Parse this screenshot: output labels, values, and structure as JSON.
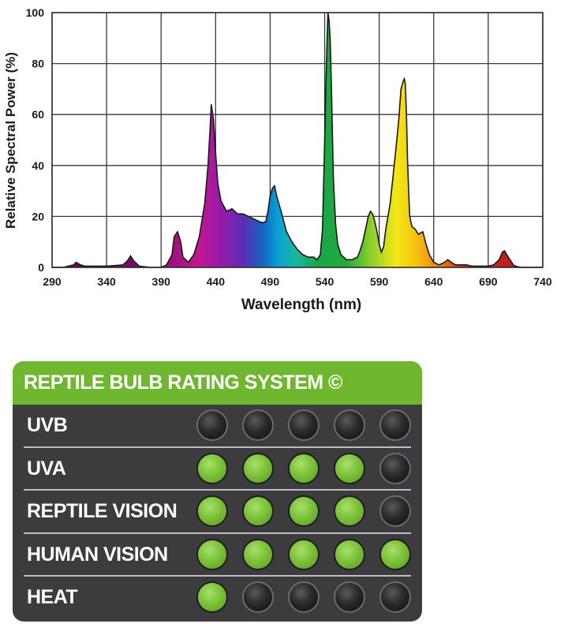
{
  "chart_data": {
    "type": "area",
    "title": "",
    "xlabel": "Wavelength (nm)",
    "ylabel": "Relative Spectral Power (%)",
    "xlim": [
      290,
      740
    ],
    "ylim": [
      0,
      100
    ],
    "x_ticks": [
      290,
      340,
      390,
      440,
      490,
      540,
      590,
      640,
      690,
      740
    ],
    "y_ticks": [
      0,
      20,
      40,
      60,
      80,
      100
    ],
    "grid": true,
    "series": [
      {
        "x": [
          290,
          300,
          310,
          312,
          316,
          320,
          330,
          340,
          350,
          355,
          359,
          362,
          365,
          370,
          380,
          390,
          395,
          400,
          402,
          405,
          408,
          410,
          415,
          420,
          425,
          430,
          433,
          435,
          436,
          438,
          440,
          442,
          445,
          450,
          455,
          460,
          465,
          470,
          475,
          480,
          483,
          486,
          488,
          490,
          492,
          494,
          496,
          500,
          505,
          510,
          515,
          520,
          525,
          530,
          533,
          536,
          538,
          540,
          541,
          542,
          543,
          544,
          545,
          546,
          547,
          548,
          550,
          552,
          555,
          560,
          565,
          570,
          572,
          575,
          578,
          580,
          582,
          584,
          586,
          588,
          590,
          592,
          594,
          596,
          600,
          605,
          608,
          610,
          612,
          613,
          614,
          615,
          616,
          617,
          618,
          620,
          623,
          626,
          630,
          633,
          636,
          640,
          645,
          650,
          653,
          656,
          660,
          665,
          670,
          675,
          680,
          685,
          690,
          695,
          700,
          703,
          705,
          707,
          710,
          713,
          715,
          720,
          730,
          740
        ],
        "y": [
          0,
          0,
          1,
          2,
          1,
          0.5,
          0.5,
          0.5,
          0.8,
          1,
          2.5,
          4.5,
          2.5,
          0.5,
          0,
          0,
          1,
          5,
          12,
          14,
          10,
          4,
          2,
          5,
          12,
          25,
          40,
          55,
          64,
          58,
          45,
          33,
          26,
          22,
          23,
          21,
          21,
          20,
          19,
          18,
          17.5,
          18,
          22,
          28,
          31,
          32,
          28,
          22,
          14,
          10,
          7,
          5,
          4,
          4,
          3,
          5,
          15,
          50,
          70,
          86,
          100,
          97,
          90,
          75,
          55,
          35,
          17,
          9,
          5,
          3,
          3,
          4,
          6,
          10,
          16,
          20,
          22,
          21,
          18,
          14,
          9,
          6,
          8,
          15,
          25,
          45,
          58,
          70,
          73,
          74,
          72,
          60,
          42,
          30,
          20,
          16,
          15,
          13,
          14,
          9,
          5,
          2,
          1,
          2,
          3,
          2,
          1,
          1,
          1,
          0.5,
          0.5,
          0.5,
          0.5,
          1,
          3,
          6,
          6.5,
          5,
          3,
          1,
          0.5,
          0,
          0,
          0
        ]
      }
    ]
  },
  "rating": {
    "title": "REPTILE BULB RATING SYSTEM ©",
    "colors": {
      "header": "#6fb72f",
      "panel": "#3c3c3e",
      "on": "#7cc23a",
      "off": "#1a1a1a"
    },
    "rows": [
      {
        "label": "UVB",
        "on": 0,
        "of": 5
      },
      {
        "label": "UVA",
        "on": 4,
        "of": 5
      },
      {
        "label": "REPTILE VISION",
        "on": 4,
        "of": 5
      },
      {
        "label": "HUMAN VISION",
        "on": 5,
        "of": 5
      },
      {
        "label": "HEAT",
        "on": 1,
        "of": 5
      }
    ]
  }
}
